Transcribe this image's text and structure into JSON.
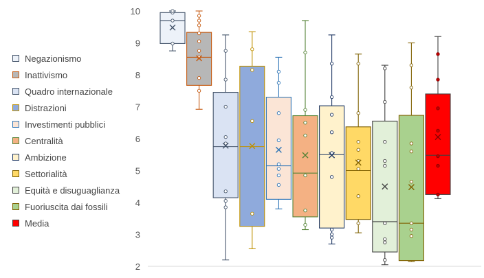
{
  "chart_data": {
    "type": "boxplot",
    "title": "",
    "xlabel": "",
    "ylabel": "",
    "ylim": [
      2,
      10
    ],
    "yticks": [
      "2",
      "3",
      "4",
      "5",
      "6",
      "7",
      "8",
      "9",
      "10"
    ],
    "grid": false,
    "legend_position": "left",
    "series": [
      {
        "name": "Negazionismo",
        "fill": "#EDF2F9",
        "stroke": "#44546A",
        "min": 8.75,
        "q1": 8.98,
        "median": 9.7,
        "q3": 9.95,
        "max": 10,
        "mean": 9.48,
        "points": [
          8.98,
          9.7,
          9.95,
          10
        ]
      },
      {
        "name": "Inattivismo",
        "fill": "#B7B7B7",
        "stroke": "#C55A11",
        "min": 6.92,
        "q1": 7.67,
        "median": 8.55,
        "q3": 9.33,
        "max": 10,
        "mean": 8.52,
        "points": [
          7.5,
          7.9,
          8.55,
          8.75,
          9.05,
          9.3,
          9.55,
          9.7,
          9.85
        ]
      },
      {
        "name": "Quadro internazionale",
        "fill": "#DAE3F3",
        "stroke": "#44546A",
        "min": 2.2,
        "q1": 4.15,
        "median": 5.75,
        "q3": 7.45,
        "max": 9.25,
        "mean": 5.78,
        "points": [
          3.85,
          4.05,
          4.35,
          5.85,
          6.05,
          7.0,
          7.85,
          8.75
        ]
      },
      {
        "name": "Distrazioni",
        "fill": "#8FAADC",
        "stroke": "#BF9000",
        "min": 2.55,
        "q1": 3.25,
        "median": 5.75,
        "q3": 8.27,
        "max": 9.35,
        "mean": 5.77,
        "points": [
          3.65,
          6.55,
          8.15,
          8.8
        ]
      },
      {
        "name": "Investimenti pubblici",
        "fill": "#FBE5D6",
        "stroke": "#2E75B6",
        "min": 3.8,
        "q1": 4.1,
        "median": 5.15,
        "q3": 7.3,
        "max": 8.55,
        "mean": 5.65,
        "points": [
          4.55,
          4.85,
          5.05,
          5.2,
          5.95,
          6.8,
          7.75,
          8.1
        ]
      },
      {
        "name": "Centralità",
        "fill": "#F4B183",
        "stroke": "#548235",
        "min": 3.15,
        "q1": 3.55,
        "median": 4.92,
        "q3": 6.72,
        "max": 9.7,
        "mean": 5.48,
        "points": [
          3.3,
          3.75,
          4.85,
          6.1,
          6.5,
          6.9,
          8.7
        ]
      },
      {
        "name": "Ambizione",
        "fill": "#FFF2CC",
        "stroke": "#1F3864",
        "min": 2.7,
        "q1": 3.2,
        "median": 5.5,
        "q3": 7.03,
        "max": 9.25,
        "mean": 5.48,
        "points": [
          2.9,
          3.0,
          3.15,
          4.8,
          5.55,
          6.2,
          6.75,
          7.3,
          8.35
        ]
      },
      {
        "name": "Settorialità",
        "fill": "#FFD966",
        "stroke": "#7F6000",
        "min": 3.05,
        "q1": 3.47,
        "median": 5.0,
        "q3": 6.37,
        "max": 8.65,
        "mean": 5.25,
        "points": [
          3.35,
          4.2,
          5.05,
          5.3,
          5.65,
          5.9,
          6.8,
          8.35
        ]
      },
      {
        "name": "Equità e disuguaglianza",
        "fill": "#E2F0D9",
        "stroke": "#404040",
        "min": 2.05,
        "q1": 2.45,
        "median": 3.4,
        "q3": 6.55,
        "max": 8.3,
        "mean": 4.5,
        "points": [
          2.2,
          2.75,
          2.85,
          3.35,
          5.15,
          5.3,
          5.9,
          7.15,
          8.2
        ]
      },
      {
        "name": "Fuoriuscita dai fossili",
        "fill": "#A9D18E",
        "stroke": "#806000",
        "min": 2.15,
        "q1": 2.18,
        "median": 3.35,
        "q3": 6.73,
        "max": 9.0,
        "mean": 4.48,
        "points": [
          2.95,
          3.15,
          3.35,
          4.65,
          5.6,
          5.85,
          7.6,
          8.3
        ]
      },
      {
        "name": "Media",
        "fill": "#FF0000",
        "stroke": "#404040",
        "min": 4.12,
        "q1": 4.25,
        "median": 5.48,
        "q3": 7.4,
        "max": 9.2,
        "mean": 6.05,
        "points": [
          4.25,
          5.15,
          5.45,
          6.25,
          6.95,
          7.85,
          8.65
        ]
      }
    ]
  }
}
